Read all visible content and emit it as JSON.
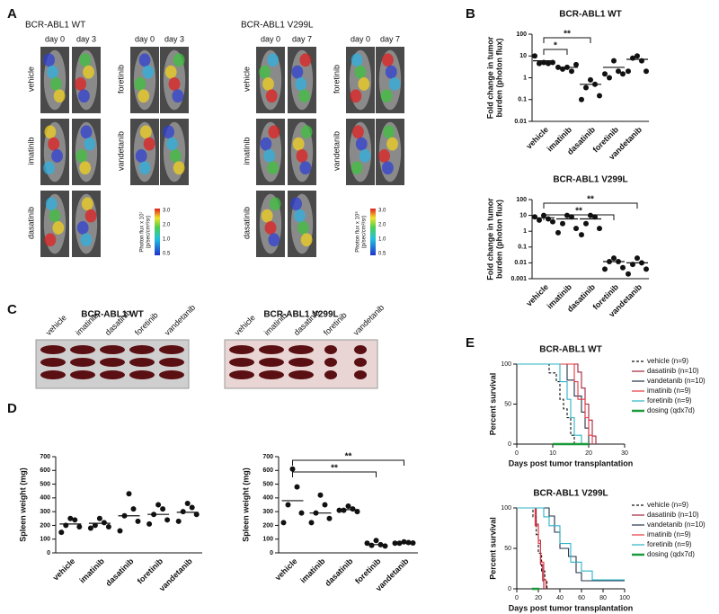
{
  "figure": {
    "panel_labels": [
      "A",
      "B",
      "C",
      "D",
      "E"
    ],
    "panel_a": [
      {
        "title": "BCR-ABL1 WT",
        "columns": [
          {
            "days": [
              "day 0",
              "day 3"
            ],
            "treatments": [
              "vehicle",
              "imatinib",
              "dasatinib"
            ]
          },
          {
            "days": [
              "day 0",
              "day 3"
            ],
            "treatments": [
              "foretinib",
              "vandetanib"
            ]
          }
        ],
        "colorbar_label": [
          "Photon flux x 10⁷",
          "(p/sec/cm²/sr)"
        ],
        "colorbar_ticks": [
          "3.0",
          "2.0",
          "1.0",
          "0.5"
        ]
      },
      {
        "title": "BCR-ABL1 V299L",
        "columns": [
          {
            "days": [
              "day 0",
              "day 7"
            ],
            "treatments": [
              "vehicle",
              "imatinib",
              "dasatinib"
            ]
          },
          {
            "days": [
              "day 0",
              "day 7"
            ],
            "treatments": [
              "foretinib",
              "vandetanib"
            ]
          }
        ],
        "colorbar_label": [
          "Photon flux x 10⁸",
          "(p/sec/cm²/sr)"
        ],
        "colorbar_ticks": [
          "3.0",
          "2.0",
          "1.0",
          "0.5"
        ]
      }
    ],
    "panel_c": [
      {
        "title": "BCR-ABL1 WT",
        "treatments": [
          "vehicle",
          "imatinib",
          "dasatinib",
          "foretinib",
          "vandetanib"
        ]
      },
      {
        "title": "BCR-ABL1 V299L",
        "treatments": [
          "vehicle",
          "imatinib",
          "dasatinib",
          "foretinib",
          "vandetanib"
        ]
      }
    ]
  },
  "chart_data": [
    {
      "type": "strip",
      "title": "BCR-ABL1 WT",
      "y_label": [
        "Fold change in tumor",
        "burden (photon flux)"
      ],
      "y_scale": "log",
      "categories": [
        "vehicle",
        "imatinib",
        "dasatinib",
        "foretinib",
        "vandetanib"
      ],
      "points": [
        [
          5,
          4.5,
          4.5,
          5,
          10
        ],
        [
          3,
          2,
          2.5,
          4,
          3
        ],
        [
          0.8,
          0.5,
          0.35,
          0.15,
          0.1
        ],
        [
          6,
          2,
          1,
          1.5,
          1.5
        ],
        [
          10,
          6,
          8,
          2,
          2
        ]
      ],
      "medians": [
        6,
        3,
        0.5,
        3,
        7
      ],
      "color": "#111111",
      "ylim": [
        0.01,
        100
      ],
      "yticks": [
        0.01,
        0.1,
        1,
        10,
        100
      ],
      "significance": [
        {
          "pair": [
            "vehicle",
            "imatinib"
          ],
          "label": "*"
        },
        {
          "pair": [
            "vehicle",
            "dasatinib"
          ],
          "label": "**"
        }
      ]
    },
    {
      "type": "strip",
      "title": "BCR-ABL1 V299L",
      "y_label": [
        "Fold change in tumor",
        "burden (photon flux)"
      ],
      "y_scale": "log",
      "categories": [
        "vehicle",
        "imatinib",
        "dasatinib",
        "foretinib",
        "vandetanib"
      ],
      "points": [
        [
          10,
          6,
          5,
          4,
          8
        ],
        [
          10,
          8,
          3,
          1.5,
          0.8
        ],
        [
          10,
          8,
          3,
          1.5,
          0.6
        ],
        [
          0.02,
          0.012,
          0.012,
          0.005,
          0.004
        ],
        [
          0.02,
          0.01,
          0.008,
          0.004,
          0.002
        ]
      ],
      "medians": [
        7,
        6,
        6,
        0.012,
        0.01
      ],
      "color": "#111111",
      "ylim": [
        0.001,
        100
      ],
      "yticks": [
        0.001,
        0.01,
        0.1,
        1,
        10,
        100
      ],
      "significance": [
        {
          "pair": [
            "vehicle",
            "foretinib"
          ],
          "label": "**"
        },
        {
          "pair": [
            "vehicle",
            "vandetanib"
          ],
          "label": "**"
        }
      ]
    },
    {
      "type": "strip",
      "y_label": "Spleen weight (mg)",
      "y_scale": "linear",
      "categories": [
        "vehicle",
        "imatinib",
        "dasatinib",
        "foretinib",
        "vandetanib"
      ],
      "points": [
        [
          250,
          240,
          200,
          190,
          150
        ],
        [
          250,
          220,
          200,
          190,
          180
        ],
        [
          430,
          320,
          270,
          230,
          160
        ],
        [
          350,
          320,
          280,
          240,
          210
        ],
        [
          360,
          330,
          300,
          280,
          230
        ]
      ],
      "medians": [
        210,
        215,
        270,
        280,
        295
      ],
      "color": "#111111",
      "ylim": [
        0,
        700
      ],
      "yticks": [
        0,
        100,
        200,
        300,
        400,
        500,
        600,
        700
      ]
    },
    {
      "type": "strip",
      "y_label": "Spleen weight (mg)",
      "y_scale": "linear",
      "categories": [
        "vehicle",
        "imatinib",
        "dasatinib",
        "foretinib",
        "vandetanib"
      ],
      "points": [
        [
          610,
          480,
          350,
          290,
          220
        ],
        [
          420,
          350,
          290,
          250,
          220
        ],
        [
          340,
          320,
          310,
          300,
          310
        ],
        [
          90,
          60,
          55,
          50,
          70
        ],
        [
          80,
          75,
          70,
          72,
          70
        ]
      ],
      "medians": [
        380,
        290,
        315,
        60,
        70
      ],
      "color": "#111111",
      "ylim": [
        0,
        700
      ],
      "yticks": [
        0,
        100,
        200,
        300,
        400,
        500,
        600,
        700
      ],
      "significance": [
        {
          "pair": [
            "vehicle",
            "foretinib"
          ],
          "label": "**"
        },
        {
          "pair": [
            "vehicle",
            "vandetanib"
          ],
          "label": "**"
        }
      ]
    },
    {
      "type": "survival",
      "title": "BCR-ABL1 WT",
      "x_label": "Days post tumor transplantation",
      "y_label": "Percent survival",
      "xlim": [
        0,
        30
      ],
      "xticks": [
        0,
        10,
        20,
        30
      ],
      "ylim": [
        0,
        100
      ],
      "yticks": [
        0,
        50,
        100
      ],
      "series": [
        {
          "name": "vehicle (n=9)",
          "color": "#111111",
          "dash": true,
          "x": [
            0,
            9,
            11,
            12,
            13,
            14,
            15,
            16
          ],
          "values": [
            100,
            89,
            78,
            56,
            44,
            33,
            11,
            0
          ]
        },
        {
          "name": "dasatinib (n=10)",
          "color": "#a3213a",
          "dash": false,
          "x": [
            0,
            17,
            18,
            19,
            20,
            21,
            22
          ],
          "values": [
            100,
            90,
            70,
            50,
            30,
            10,
            0
          ]
        },
        {
          "name": "vandetanib (n=10)",
          "color": "#1f3347",
          "dash": false,
          "x": [
            0,
            14,
            16,
            18,
            19,
            20
          ],
          "values": [
            100,
            80,
            60,
            40,
            20,
            0
          ]
        },
        {
          "name": "imatinib (n=9)",
          "color": "#e8373f",
          "dash": false,
          "x": [
            0,
            16,
            17,
            19,
            20,
            21
          ],
          "values": [
            100,
            78,
            56,
            33,
            11,
            0
          ]
        },
        {
          "name": "foretinib (n=9)",
          "color": "#2bb3c6",
          "dash": false,
          "x": [
            0,
            12,
            14,
            15,
            16,
            18
          ],
          "values": [
            100,
            78,
            56,
            33,
            11,
            0
          ]
        },
        {
          "name": "dosing (qdx7d)",
          "color": "#1a9a3a",
          "dash": false,
          "x": [
            10,
            20
          ],
          "values": [
            0,
            0
          ]
        }
      ]
    },
    {
      "type": "survival",
      "title": "BCR-ABL1 V299L",
      "x_label": "Days post tumor transplantation",
      "y_label": "Percent survival",
      "xlim": [
        0,
        100
      ],
      "xticks": [
        0,
        20,
        40,
        60,
        80,
        100
      ],
      "ylim": [
        0,
        100
      ],
      "yticks": [
        0,
        50,
        100
      ],
      "series": [
        {
          "name": "vehicle (n=9)",
          "color": "#111111",
          "dash": true,
          "x": [
            0,
            15,
            18,
            20,
            23,
            26,
            28
          ],
          "values": [
            100,
            89,
            67,
            44,
            22,
            11,
            0
          ]
        },
        {
          "name": "dasatinib (n=10)",
          "color": "#a3213a",
          "dash": false,
          "x": [
            0,
            18,
            20,
            22,
            24,
            25
          ],
          "values": [
            100,
            80,
            60,
            30,
            10,
            0
          ]
        },
        {
          "name": "vandetanib (n=10)",
          "color": "#1f3347",
          "dash": false,
          "x": [
            0,
            30,
            35,
            40,
            48,
            55,
            60,
            100
          ],
          "values": [
            100,
            90,
            70,
            50,
            40,
            20,
            10,
            10
          ]
        },
        {
          "name": "imatinib (n=9)",
          "color": "#e8373f",
          "dash": false,
          "x": [
            0,
            17,
            20,
            22,
            25,
            27
          ],
          "values": [
            100,
            78,
            56,
            33,
            11,
            0
          ]
        },
        {
          "name": "foretinib (n=9)",
          "color": "#2bb3c6",
          "dash": false,
          "x": [
            0,
            25,
            30,
            40,
            50,
            60,
            70,
            100
          ],
          "values": [
            100,
            89,
            78,
            56,
            33,
            22,
            11,
            11
          ]
        },
        {
          "name": "dosing (qdx7d)",
          "color": "#1a9a3a",
          "dash": false,
          "x": [
            14,
            21
          ],
          "values": [
            0,
            0
          ]
        }
      ]
    }
  ]
}
